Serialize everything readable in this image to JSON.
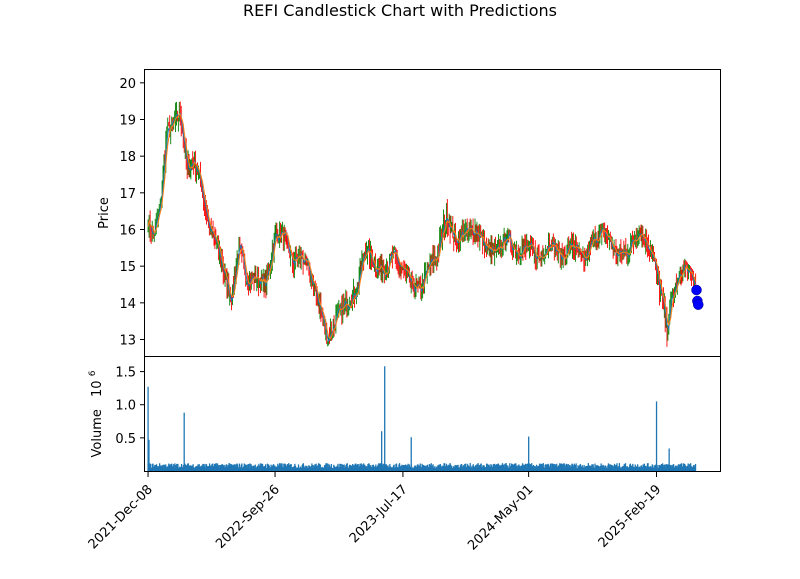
{
  "chart_data": {
    "type": "candlestick",
    "title": "REFI Candlestick Chart with Predictions",
    "price_panel": {
      "ylabel": "Price",
      "ylim": [
        12.55,
        20.35
      ],
      "yticks": [
        13,
        14,
        15,
        16,
        17,
        18,
        19,
        20
      ],
      "grid": false,
      "series": [
        {
          "x": "2021-Dec-08",
          "close": 16.3,
          "high": 16.8,
          "low": 15.7
        },
        {
          "x": "2021-Dec-20",
          "close": 15.8,
          "high": 16.1,
          "low": 15.4
        },
        {
          "x": "2022-Jan-05",
          "close": 16.6,
          "high": 17.3,
          "low": 16.0
        },
        {
          "x": "2022-Jan-20",
          "close": 18.6,
          "high": 20.0,
          "low": 17.8
        },
        {
          "x": "2022-Feb-05",
          "close": 18.9,
          "high": 19.8,
          "low": 18.0
        },
        {
          "x": "2022-Feb-20",
          "close": 19.2,
          "high": 20.0,
          "low": 18.3
        },
        {
          "x": "2022-Mar-08",
          "close": 17.6,
          "high": 18.6,
          "low": 17.0
        },
        {
          "x": "2022-Mar-25",
          "close": 17.9,
          "high": 18.7,
          "low": 17.2
        },
        {
          "x": "2022-Apr-10",
          "close": 17.2,
          "high": 17.7,
          "low": 16.5
        },
        {
          "x": "2022-Apr-28",
          "close": 16.0,
          "high": 16.8,
          "low": 15.3
        },
        {
          "x": "2022-May-15",
          "close": 15.6,
          "high": 16.1,
          "low": 14.9
        },
        {
          "x": "2022-Jun-01",
          "close": 14.8,
          "high": 15.3,
          "low": 14.3
        },
        {
          "x": "2022-Jun-18",
          "close": 14.1,
          "high": 14.6,
          "low": 13.8
        },
        {
          "x": "2022-Jul-05",
          "close": 15.5,
          "high": 15.9,
          "low": 14.9
        },
        {
          "x": "2022-Jul-25",
          "close": 14.6,
          "high": 15.1,
          "low": 14.2
        },
        {
          "x": "2022-Aug-15",
          "close": 14.7,
          "high": 15.0,
          "low": 14.2
        },
        {
          "x": "2022-Sep-05",
          "close": 14.5,
          "high": 14.9,
          "low": 14.1
        },
        {
          "x": "2022-Sep-26",
          "close": 15.8,
          "high": 16.3,
          "low": 15.2
        },
        {
          "x": "2022-Oct-15",
          "close": 15.9,
          "high": 16.2,
          "low": 15.4
        },
        {
          "x": "2022-Nov-05",
          "close": 15.1,
          "high": 15.5,
          "low": 14.6
        },
        {
          "x": "2022-Nov-25",
          "close": 15.3,
          "high": 15.6,
          "low": 14.9
        },
        {
          "x": "2022-Dec-15",
          "close": 14.8,
          "high": 15.1,
          "low": 14.3
        },
        {
          "x": "2023-Jan-05",
          "close": 14.0,
          "high": 14.5,
          "low": 13.5
        },
        {
          "x": "2023-Jan-25",
          "close": 13.0,
          "high": 13.5,
          "low": 12.8
        },
        {
          "x": "2023-Feb-15",
          "close": 13.6,
          "high": 14.0,
          "low": 13.2
        },
        {
          "x": "2023-Mar-10",
          "close": 14.0,
          "high": 14.4,
          "low": 13.6
        },
        {
          "x": "2023-Apr-01",
          "close": 14.3,
          "high": 14.8,
          "low": 13.9
        },
        {
          "x": "2023-Apr-22",
          "close": 15.5,
          "high": 16.0,
          "low": 14.9
        },
        {
          "x": "2023-May-15",
          "close": 15.0,
          "high": 15.4,
          "low": 14.7
        },
        {
          "x": "2023-Jun-05",
          "close": 14.9,
          "high": 15.3,
          "low": 14.5
        },
        {
          "x": "2023-Jun-25",
          "close": 15.3,
          "high": 15.6,
          "low": 14.9
        },
        {
          "x": "2023-Jul-17",
          "close": 14.9,
          "high": 15.2,
          "low": 14.5
        },
        {
          "x": "2023-Aug-05",
          "close": 14.5,
          "high": 14.9,
          "low": 14.1
        },
        {
          "x": "2023-Aug-25",
          "close": 14.3,
          "high": 14.7,
          "low": 13.8
        },
        {
          "x": "2023-Sep-15",
          "close": 15.0,
          "high": 15.5,
          "low": 14.7
        },
        {
          "x": "2023-Oct-05",
          "close": 15.3,
          "high": 15.7,
          "low": 14.9
        },
        {
          "x": "2023-Oct-25",
          "close": 16.4,
          "high": 17.4,
          "low": 15.8
        },
        {
          "x": "2023-Nov-15",
          "close": 15.7,
          "high": 16.2,
          "low": 15.3
        },
        {
          "x": "2023-Dec-05",
          "close": 15.9,
          "high": 16.3,
          "low": 15.5
        },
        {
          "x": "2024-Jan-01",
          "close": 16.0,
          "high": 16.3,
          "low": 15.6
        },
        {
          "x": "2024-Jan-25",
          "close": 15.5,
          "high": 15.9,
          "low": 15.1
        },
        {
          "x": "2024-Feb-15",
          "close": 15.3,
          "high": 15.8,
          "low": 15.0
        },
        {
          "x": "2024-Mar-10",
          "close": 15.8,
          "high": 16.1,
          "low": 15.4
        },
        {
          "x": "2024-Apr-05",
          "close": 15.4,
          "high": 15.8,
          "low": 15.0
        },
        {
          "x": "2024-May-01",
          "close": 15.5,
          "high": 15.9,
          "low": 15.1
        },
        {
          "x": "2024-May-25",
          "close": 15.2,
          "high": 15.6,
          "low": 14.8
        },
        {
          "x": "2024-Jun-20",
          "close": 15.7,
          "high": 16.0,
          "low": 15.3
        },
        {
          "x": "2024-Jul-15",
          "close": 15.2,
          "high": 15.6,
          "low": 14.9
        },
        {
          "x": "2024-Aug-10",
          "close": 15.6,
          "high": 16.0,
          "low": 15.2
        },
        {
          "x": "2024-Sep-05",
          "close": 15.1,
          "high": 15.5,
          "low": 14.8
        },
        {
          "x": "2024-Oct-01",
          "close": 15.8,
          "high": 16.1,
          "low": 15.4
        },
        {
          "x": "2024-Oct-25",
          "close": 15.9,
          "high": 16.2,
          "low": 15.6
        },
        {
          "x": "2024-Nov-20",
          "close": 15.3,
          "high": 15.7,
          "low": 15.0
        },
        {
          "x": "2024-Dec-15",
          "close": 15.4,
          "high": 15.8,
          "low": 15.0
        },
        {
          "x": "2025-Jan-10",
          "close": 16.0,
          "high": 16.2,
          "low": 15.6
        },
        {
          "x": "2025-Feb-05",
          "close": 15.5,
          "high": 15.9,
          "low": 15.0
        },
        {
          "x": "2025-Feb-19",
          "close": 14.8,
          "high": 15.2,
          "low": 14.5
        },
        {
          "x": "2025-Mar-05",
          "close": 14.0,
          "high": 14.6,
          "low": 13.2
        },
        {
          "x": "2025-Mar-15",
          "close": 13.3,
          "high": 13.9,
          "low": 12.8
        },
        {
          "x": "2025-Mar-28",
          "close": 14.2,
          "high": 14.6,
          "low": 13.8
        },
        {
          "x": "2025-Apr-10",
          "close": 14.6,
          "high": 14.9,
          "low": 14.3
        },
        {
          "x": "2025-Apr-25",
          "close": 15.0,
          "high": 15.2,
          "low": 14.7
        },
        {
          "x": "2025-May-08",
          "close": 14.7,
          "high": 15.0,
          "low": 14.5
        },
        {
          "x": "2025-May-20",
          "close": 14.5,
          "high": 14.8,
          "low": 14.3
        }
      ],
      "predictions": [
        {
          "x": "2025-May-22",
          "y": 14.35
        },
        {
          "x": "2025-May-24",
          "y": 14.05
        },
        {
          "x": "2025-May-26",
          "y": 13.95
        }
      ]
    },
    "volume_panel": {
      "ylabel": "Volume",
      "scale_label": "10",
      "scale_exponent": "6",
      "ylim": [
        0,
        1.72
      ],
      "yticks": [
        "0.5",
        "1.0",
        "1.5"
      ],
      "ytick_values": [
        0.5,
        1.0,
        1.5
      ],
      "spikes": [
        {
          "x": "2021-Dec-08",
          "value": 1.27
        },
        {
          "x": "2021-Dec-10",
          "value": 0.47
        },
        {
          "x": "2022-Mar-01",
          "value": 0.88
        },
        {
          "x": "2023-May-29",
          "value": 0.6
        },
        {
          "x": "2023-Jun-05",
          "value": 1.58
        },
        {
          "x": "2023-Aug-05",
          "value": 0.51
        },
        {
          "x": "2024-May-01",
          "value": 0.52
        },
        {
          "x": "2025-Feb-19",
          "value": 1.05
        },
        {
          "x": "2025-Mar-20",
          "value": 0.34
        }
      ],
      "baseline_low": 0.04,
      "baseline_high": 0.12
    },
    "xaxis": {
      "start": "2021-Dec-01",
      "end": "2025-Jul-15",
      "ticks": [
        "2021-Dec-08",
        "2022-Sep-26",
        "2023-Jul-17",
        "2024-May-01",
        "2025-Feb-19"
      ]
    },
    "colors": {
      "up": "#008000",
      "down": "#ff0000",
      "ma_fast": "#1f77b4",
      "ma_slow": "#ff7f0e",
      "volume": "#1f77b4",
      "prediction": "#0000ff"
    }
  }
}
